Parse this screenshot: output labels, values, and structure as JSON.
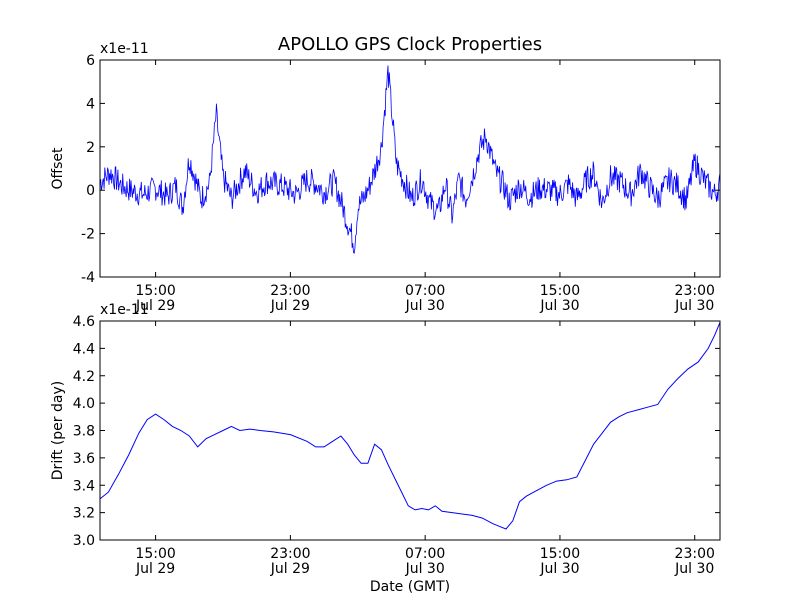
{
  "figure": {
    "title": "APOLLO GPS Clock Properties",
    "line_color": "#0000ff"
  },
  "chart_data": [
    {
      "type": "line",
      "name": "offset",
      "title": "APOLLO GPS Clock Properties",
      "ylabel": "Offset",
      "xlabel": "",
      "y_multiplier": "x1e-11",
      "x_start_hour": 11.7,
      "x_end_hour": 48.5,
      "ylim": [
        -4,
        6
      ],
      "yticks": [
        -4,
        -2,
        0,
        2,
        4,
        6
      ],
      "ytick_labels": [
        "-4",
        "-2",
        "0",
        "2",
        "4",
        "6"
      ],
      "xticks": [
        {
          "hour": 15,
          "time": "15:00",
          "date": "Jul 29"
        },
        {
          "hour": 23,
          "time": "23:00",
          "date": "Jul 29"
        },
        {
          "hour": 31,
          "time": "07:00",
          "date": "Jul 30"
        },
        {
          "hour": 39,
          "time": "15:00",
          "date": "Jul 30"
        },
        {
          "hour": 47,
          "time": "23:00",
          "date": "Jul 30"
        }
      ],
      "x_hours": [
        11.7,
        12.3,
        13,
        13.5,
        14.3,
        15,
        15.7,
        16.2,
        16.6,
        17,
        17.7,
        18.2,
        18.6,
        19,
        19.5,
        20.3,
        21,
        21.6,
        22.5,
        23.3,
        24,
        24.5,
        25,
        25.6,
        26,
        26.4,
        26.8,
        27,
        27.4,
        27.7,
        28,
        28.4,
        28.8,
        29.3,
        29.8,
        30.2,
        30.8,
        31.3,
        31.8,
        32.2,
        32.6,
        33,
        33.4,
        33.8,
        34.2,
        34.6,
        35.2,
        35.6,
        36,
        36.6,
        37.2,
        37.8,
        38.4,
        39,
        39.5,
        40,
        40.6,
        41,
        41.5,
        42,
        42.6,
        43.2,
        43.8,
        44.2,
        44.8,
        45.5,
        46,
        46.5,
        47,
        47.6,
        48.2,
        48.5
      ],
      "values": [
        0.4,
        0.8,
        0.2,
        0,
        -0.2,
        0.1,
        -0.3,
        0.2,
        -0.8,
        1.5,
        -0.4,
        0.3,
        3.5,
        0.6,
        -0.4,
        0.9,
        -0.1,
        0.4,
        0.2,
        -0.2,
        0.5,
        0.3,
        -0.1,
        0.4,
        -0.5,
        -1.5,
        -2.5,
        -0.8,
        -0.3,
        0.2,
        0.9,
        2.0,
        5.5,
        1.2,
        0.3,
        -0.4,
        0.5,
        -0.6,
        -1.0,
        0.3,
        -1.2,
        0.5,
        -0.4,
        0.6,
        1.8,
        2.5,
        0.8,
        0.3,
        -0.5,
        0.2,
        -0.3,
        0.1,
        0,
        -0.2,
        0.3,
        -0.4,
        0.5,
        0.8,
        -0.6,
        0.6,
        0.4,
        -0.2,
        0.9,
        0.3,
        -0.4,
        0.5,
        0.2,
        -0.5,
        1.3,
        0.4,
        -0.2,
        0.3
      ]
    },
    {
      "type": "line",
      "name": "drift",
      "title": "",
      "ylabel": "Drift (per day)",
      "xlabel": "Date (GMT)",
      "y_multiplier": "x1e-11",
      "x_start_hour": 11.7,
      "x_end_hour": 48.5,
      "ylim": [
        3.0,
        4.6
      ],
      "yticks": [
        3.0,
        3.2,
        3.4,
        3.6,
        3.8,
        4.0,
        4.2,
        4.4,
        4.6
      ],
      "ytick_labels": [
        "3.0",
        "3.2",
        "3.4",
        "3.6",
        "3.8",
        "4.0",
        "4.2",
        "4.4",
        "4.6"
      ],
      "xticks": [
        {
          "hour": 15,
          "time": "15:00",
          "date": "Jul 29"
        },
        {
          "hour": 23,
          "time": "23:00",
          "date": "Jul 29"
        },
        {
          "hour": 31,
          "time": "07:00",
          "date": "Jul 30"
        },
        {
          "hour": 39,
          "time": "15:00",
          "date": "Jul 30"
        },
        {
          "hour": 47,
          "time": "23:00",
          "date": "Jul 30"
        }
      ],
      "x_hours": [
        11.7,
        12.2,
        12.8,
        13.4,
        14,
        14.5,
        15,
        15.5,
        16,
        16.5,
        17,
        17.5,
        18,
        18.5,
        19,
        19.5,
        20,
        20.6,
        21.2,
        22,
        23,
        24,
        24.5,
        25,
        25.5,
        26,
        26.4,
        26.8,
        27.2,
        27.6,
        28,
        28.4,
        28.8,
        29.2,
        29.6,
        30,
        30.4,
        30.8,
        31.2,
        31.6,
        32,
        32.6,
        33.2,
        33.8,
        34.4,
        35,
        35.4,
        35.8,
        36.2,
        36.6,
        37,
        37.6,
        38.2,
        38.8,
        39.4,
        40,
        40.5,
        41,
        41.5,
        42,
        42.5,
        43,
        43.6,
        44.2,
        44.8,
        45.4,
        46,
        46.6,
        47.2,
        47.8,
        48.2,
        48.5
      ],
      "values": [
        3.3,
        3.35,
        3.48,
        3.62,
        3.78,
        3.88,
        3.92,
        3.88,
        3.83,
        3.8,
        3.76,
        3.68,
        3.74,
        3.77,
        3.8,
        3.83,
        3.8,
        3.81,
        3.8,
        3.79,
        3.77,
        3.72,
        3.68,
        3.68,
        3.72,
        3.76,
        3.7,
        3.62,
        3.56,
        3.56,
        3.7,
        3.66,
        3.55,
        3.45,
        3.35,
        3.25,
        3.22,
        3.23,
        3.22,
        3.25,
        3.21,
        3.2,
        3.19,
        3.18,
        3.16,
        3.12,
        3.1,
        3.08,
        3.14,
        3.28,
        3.32,
        3.36,
        3.4,
        3.43,
        3.44,
        3.46,
        3.58,
        3.7,
        3.78,
        3.86,
        3.9,
        3.93,
        3.95,
        3.97,
        3.99,
        4.1,
        4.18,
        4.25,
        4.3,
        4.4,
        4.5,
        4.59
      ]
    }
  ]
}
